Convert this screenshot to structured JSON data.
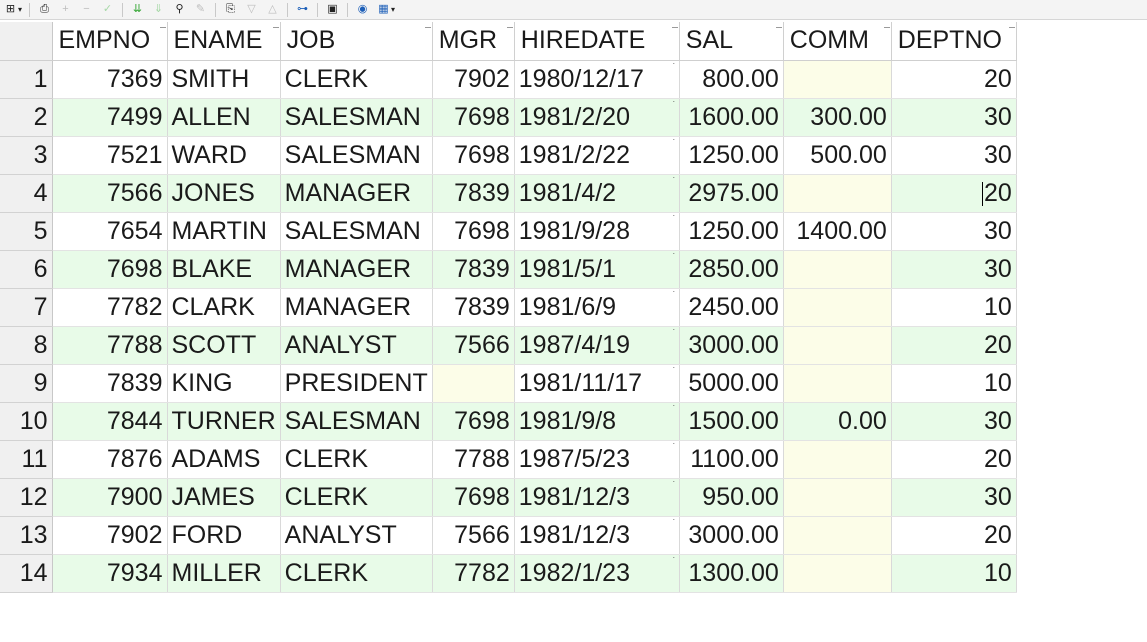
{
  "toolbar": {
    "icons": [
      {
        "name": "grid-options-icon",
        "glyph": "⊞"
      },
      {
        "name": "print-icon",
        "glyph": "⎙"
      },
      {
        "name": "add-record-icon",
        "glyph": "+"
      },
      {
        "name": "delete-record-icon",
        "glyph": "−"
      },
      {
        "name": "post-edit-icon",
        "glyph": "✓"
      },
      {
        "name": "cancel-edit-icon",
        "glyph": "✎"
      },
      {
        "name": "refresh-icon",
        "glyph": "⇊"
      },
      {
        "name": "refresh-all-icon",
        "glyph": "⇓"
      },
      {
        "name": "find-icon",
        "glyph": "⚲"
      },
      {
        "name": "clear-icon",
        "glyph": "⌫"
      },
      {
        "name": "query-icon",
        "glyph": "⎘"
      },
      {
        "name": "filter-down-icon",
        "glyph": "▽"
      },
      {
        "name": "filter-up-icon",
        "glyph": "△"
      },
      {
        "name": "network-icon",
        "glyph": "⊶"
      },
      {
        "name": "save-icon",
        "glyph": "▣"
      },
      {
        "name": "database-icon",
        "glyph": "◉"
      },
      {
        "name": "chart-icon",
        "glyph": "▦"
      }
    ]
  },
  "grid": {
    "columns": [
      "EMPNO",
      "ENAME",
      "JOB",
      "MGR",
      "HIREDATE",
      "SAL",
      "COMM",
      "DEPTNO"
    ],
    "rows": [
      {
        "n": "1",
        "empno": "7369",
        "ename": "SMITH",
        "job": "CLERK",
        "mgr": "7902",
        "hiredate": "1980/12/17",
        "sal": "800.00",
        "comm": "",
        "deptno": "20"
      },
      {
        "n": "2",
        "empno": "7499",
        "ename": "ALLEN",
        "job": "SALESMAN",
        "mgr": "7698",
        "hiredate": "1981/2/20",
        "sal": "1600.00",
        "comm": "300.00",
        "deptno": "30"
      },
      {
        "n": "3",
        "empno": "7521",
        "ename": "WARD",
        "job": "SALESMAN",
        "mgr": "7698",
        "hiredate": "1981/2/22",
        "sal": "1250.00",
        "comm": "500.00",
        "deptno": "30"
      },
      {
        "n": "4",
        "empno": "7566",
        "ename": "JONES",
        "job": "MANAGER",
        "mgr": "7839",
        "hiredate": "1981/4/2",
        "sal": "2975.00",
        "comm": "",
        "deptno": "20"
      },
      {
        "n": "5",
        "empno": "7654",
        "ename": "MARTIN",
        "job": "SALESMAN",
        "mgr": "7698",
        "hiredate": "1981/9/28",
        "sal": "1250.00",
        "comm": "1400.00",
        "deptno": "30"
      },
      {
        "n": "6",
        "empno": "7698",
        "ename": "BLAKE",
        "job": "MANAGER",
        "mgr": "7839",
        "hiredate": "1981/5/1",
        "sal": "2850.00",
        "comm": "",
        "deptno": "30"
      },
      {
        "n": "7",
        "empno": "7782",
        "ename": "CLARK",
        "job": "MANAGER",
        "mgr": "7839",
        "hiredate": "1981/6/9",
        "sal": "2450.00",
        "comm": "",
        "deptno": "10"
      },
      {
        "n": "8",
        "empno": "7788",
        "ename": "SCOTT",
        "job": "ANALYST",
        "mgr": "7566",
        "hiredate": "1987/4/19",
        "sal": "3000.00",
        "comm": "",
        "deptno": "20"
      },
      {
        "n": "9",
        "empno": "7839",
        "ename": "KING",
        "job": "PRESIDENT",
        "mgr": "",
        "hiredate": "1981/11/17",
        "sal": "5000.00",
        "comm": "",
        "deptno": "10"
      },
      {
        "n": "10",
        "empno": "7844",
        "ename": "TURNER",
        "job": "SALESMAN",
        "mgr": "7698",
        "hiredate": "1981/9/8",
        "sal": "1500.00",
        "comm": "0.00",
        "deptno": "30"
      },
      {
        "n": "11",
        "empno": "7876",
        "ename": "ADAMS",
        "job": "CLERK",
        "mgr": "7788",
        "hiredate": "1987/5/23",
        "sal": "1100.00",
        "comm": "",
        "deptno": "20"
      },
      {
        "n": "12",
        "empno": "7900",
        "ename": "JAMES",
        "job": "CLERK",
        "mgr": "7698",
        "hiredate": "1981/12/3",
        "sal": "950.00",
        "comm": "",
        "deptno": "30"
      },
      {
        "n": "13",
        "empno": "7902",
        "ename": "FORD",
        "job": "ANALYST",
        "mgr": "7566",
        "hiredate": "1981/12/3",
        "sal": "3000.00",
        "comm": "",
        "deptno": "20"
      },
      {
        "n": "14",
        "empno": "7934",
        "ename": "MILLER",
        "job": "CLERK",
        "mgr": "7782",
        "hiredate": "1982/1/23",
        "sal": "1300.00",
        "comm": "",
        "deptno": "10"
      }
    ],
    "selected_row": 4,
    "colors": {
      "even_row": "#e8fbe8",
      "null_cell": "#fcfde8",
      "row_header": "#f0f0f0"
    }
  }
}
